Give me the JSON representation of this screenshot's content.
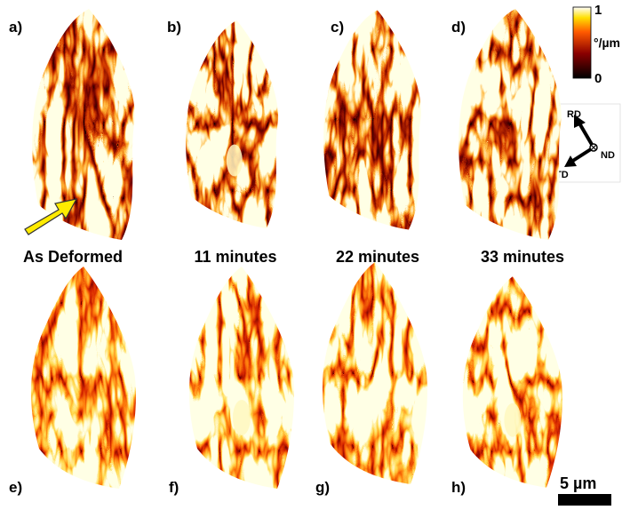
{
  "panel_labels": [
    "a)",
    "b)",
    "c)",
    "d)",
    "e)",
    "f)",
    "g)",
    "h)"
  ],
  "captions": [
    "As Deformed",
    "11 minutes",
    "22 minutes",
    "33 minutes"
  ],
  "colorbar": {
    "max": "1",
    "unit": "°/µm",
    "min": "0"
  },
  "axes": {
    "rd": "RD",
    "nd": "ND",
    "td": "TD"
  },
  "scale_bar": "5 µm"
}
